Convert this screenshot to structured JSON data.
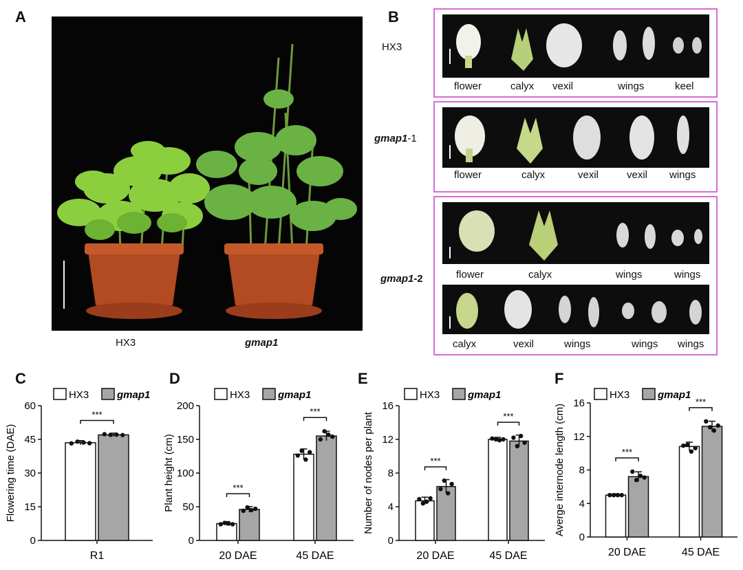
{
  "panels": {
    "A": "A",
    "B": "B",
    "C": "C",
    "D": "D",
    "E": "E",
    "F": "F"
  },
  "panelA": {
    "left_label": "HX3",
    "right_label": "gmap1"
  },
  "panelB": {
    "hx3": {
      "genotype": "HX3",
      "organs": [
        "flower",
        "calyx",
        "vexil",
        "wings",
        "keel"
      ]
    },
    "gmap1_1": {
      "genotype_italic": "gmap1",
      "genotype_suffix": "-1",
      "organs": [
        "flower",
        "calyx",
        "vexil",
        "vexil",
        "wings"
      ]
    },
    "gmap1_2": {
      "genotype_italic": "gmap1",
      "genotype_suffix": "-2",
      "row1": [
        "flower",
        "calyx",
        "wings",
        "wings"
      ],
      "row2": [
        "calyx",
        "vexil",
        "wings",
        "wings",
        "wings"
      ]
    }
  },
  "legend": {
    "hx3": "HX3",
    "gmap1": "gmap1"
  },
  "significance": "***",
  "colors": {
    "hx3_fill": "#ffffff",
    "gmap1_fill": "#a6a6a6",
    "frame": "#d86ad8"
  },
  "chart_data": [
    {
      "id": "C",
      "type": "bar",
      "title": "",
      "ylabel": "Flowering time (DAE)",
      "xlabel": "",
      "categories": [
        "R1"
      ],
      "ylim": [
        0,
        60
      ],
      "yticks": [
        0,
        15,
        30,
        45,
        60
      ],
      "series": [
        {
          "name": "HX3",
          "values": [
            43.5
          ]
        },
        {
          "name": "gmap1",
          "values": [
            47
          ]
        }
      ],
      "points": {
        "HX3": [
          [
            43.2,
            44.0,
            43.6,
            43.3
          ]
        ],
        "gmap1": [
          [
            47.3,
            47.0,
            47.1,
            46.9
          ]
        ]
      }
    },
    {
      "id": "D",
      "type": "bar",
      "title": "",
      "ylabel": "Plant height (cm)",
      "xlabel": "",
      "categories": [
        "20 DAE",
        "45 DAE"
      ],
      "ylim": [
        0,
        200
      ],
      "yticks": [
        0,
        50,
        100,
        150,
        200
      ],
      "series": [
        {
          "name": "HX3",
          "values": [
            25,
            128
          ]
        },
        {
          "name": "gmap1",
          "values": [
            46,
            155
          ]
        }
      ],
      "points": {
        "HX3": [
          [
            24,
            26,
            25,
            24
          ],
          [
            126,
            133,
            120,
            131
          ]
        ],
        "gmap1": [
          [
            44,
            49,
            45,
            47
          ],
          [
            150,
            162,
            157,
            154
          ]
        ]
      }
    },
    {
      "id": "E",
      "type": "bar",
      "title": "",
      "ylabel": "Number of nodes per plant",
      "xlabel": "",
      "categories": [
        "20 DAE",
        "45 DAE"
      ],
      "ylim": [
        0,
        16
      ],
      "yticks": [
        0,
        4,
        8,
        12,
        16
      ],
      "series": [
        {
          "name": "HX3",
          "values": [
            4.7,
            12
          ]
        },
        {
          "name": "gmap1",
          "values": [
            6.4,
            11.8
          ]
        }
      ],
      "points": {
        "HX3": [
          [
            4.9,
            4.4,
            4.6,
            5.0
          ],
          [
            12.1,
            12.0,
            11.9,
            12.0
          ]
        ],
        "gmap1": [
          [
            6.1,
            7.1,
            5.6,
            6.7
          ],
          [
            12.2,
            11.2,
            12.4,
            11.6
          ]
        ]
      }
    },
    {
      "id": "F",
      "type": "bar",
      "title": "",
      "ylabel": "Averge internode length (cm)",
      "xlabel": "",
      "categories": [
        "20 DAE",
        "45 DAE"
      ],
      "ylim": [
        0,
        16
      ],
      "yticks": [
        0,
        4,
        8,
        12,
        16
      ],
      "series": [
        {
          "name": "HX3",
          "values": [
            5,
            10.8
          ]
        },
        {
          "name": "gmap1",
          "values": [
            7.2,
            13.2
          ]
        }
      ],
      "points": {
        "HX3": [
          [
            5.0,
            5.0,
            5.0,
            5.0
          ],
          [
            10.9,
            11.0,
            10.2,
            10.6
          ]
        ],
        "gmap1": [
          [
            7.8,
            6.8,
            7.3,
            7.1
          ],
          [
            13.8,
            13.1,
            12.7,
            13.3
          ]
        ]
      }
    }
  ]
}
